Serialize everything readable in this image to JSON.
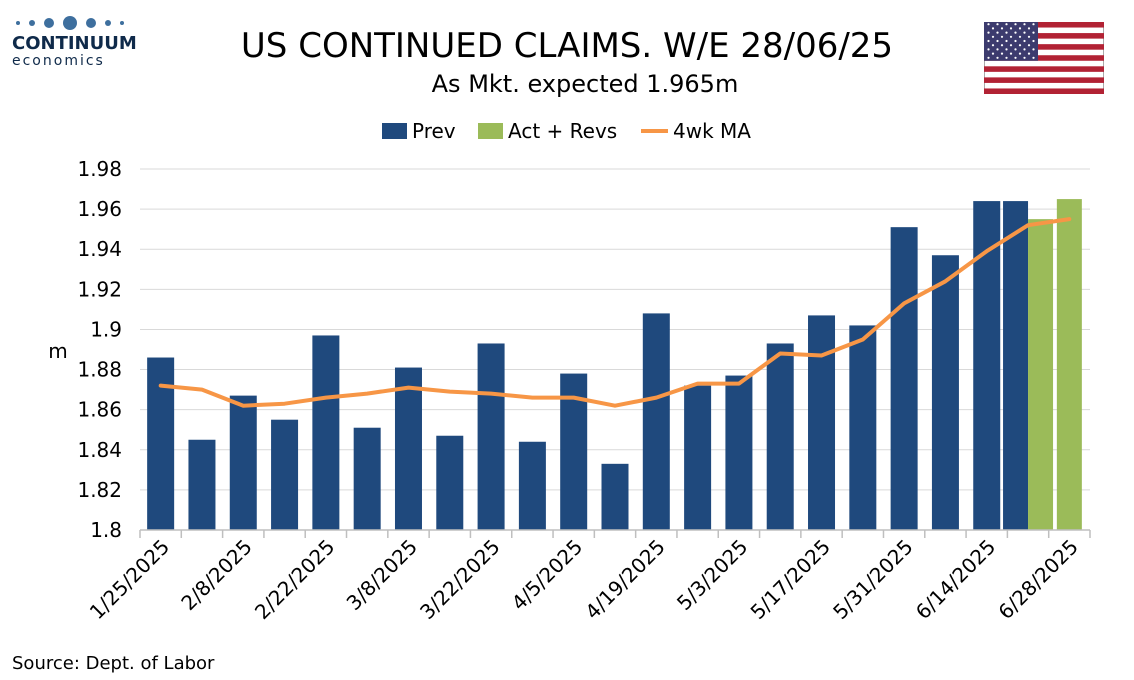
{
  "header": {
    "logo_word": "CONTINUUM",
    "logo_sub": "economics",
    "title": "US CONTINUED CLAIMS. W/E 28/06/25",
    "subtitle": "As Mkt. expected 1.965m"
  },
  "footer": {
    "source": "Source: Dept. of Labor"
  },
  "colors": {
    "prev": "#1f497d",
    "act": "#9bbb59",
    "ma": "#f79646",
    "grid": "#d9d9d9",
    "logo": "#3e6f9e"
  },
  "chart_data": {
    "type": "bar",
    "ylabel": "m",
    "ylim": [
      1.8,
      1.98
    ],
    "yticks": [
      1.8,
      1.82,
      1.84,
      1.86,
      1.88,
      1.9,
      1.92,
      1.94,
      1.96,
      1.98
    ],
    "ytick_labels": [
      "1.8",
      "1.82",
      "1.84",
      "1.86",
      "1.88",
      "1.9",
      "1.92",
      "1.94",
      "1.96",
      "1.98"
    ],
    "categories": [
      "1/25/2025",
      "2/1/2025",
      "2/8/2025",
      "2/15/2025",
      "2/22/2025",
      "3/1/2025",
      "3/8/2025",
      "3/15/2025",
      "3/22/2025",
      "3/29/2025",
      "4/5/2025",
      "4/12/2025",
      "4/19/2025",
      "4/26/2025",
      "5/3/2025",
      "5/10/2025",
      "5/17/2025",
      "5/24/2025",
      "5/31/2025",
      "6/7/2025",
      "6/14/2025",
      "6/21/2025",
      "6/28/2025"
    ],
    "x_tick_labels": [
      "1/25/2025",
      "2/8/2025",
      "2/22/2025",
      "3/8/2025",
      "3/22/2025",
      "4/5/2025",
      "4/19/2025",
      "5/3/2025",
      "5/17/2025",
      "5/31/2025",
      "6/14/2025",
      "6/28/2025"
    ],
    "grid": true,
    "legend_position": "top-center",
    "series": [
      {
        "name": "Prev",
        "kind": "bar",
        "values": [
          1.886,
          1.845,
          1.867,
          1.855,
          1.897,
          1.851,
          1.881,
          1.847,
          1.893,
          1.844,
          1.878,
          1.833,
          1.908,
          1.872,
          1.877,
          1.893,
          1.907,
          1.902,
          1.951,
          1.937,
          1.964,
          1.964,
          null
        ]
      },
      {
        "name": "Act + Revs",
        "kind": "bar",
        "values": [
          null,
          null,
          null,
          null,
          null,
          null,
          null,
          null,
          null,
          null,
          null,
          null,
          null,
          null,
          null,
          null,
          null,
          null,
          null,
          null,
          null,
          1.955,
          1.965
        ]
      },
      {
        "name": "4wk MA",
        "kind": "line",
        "values": [
          1.872,
          1.87,
          1.862,
          1.863,
          1.866,
          1.868,
          1.871,
          1.869,
          1.868,
          1.866,
          1.866,
          1.862,
          1.866,
          1.873,
          1.873,
          1.888,
          1.887,
          1.895,
          1.913,
          1.924,
          1.939,
          1.952,
          1.955
        ]
      }
    ]
  }
}
